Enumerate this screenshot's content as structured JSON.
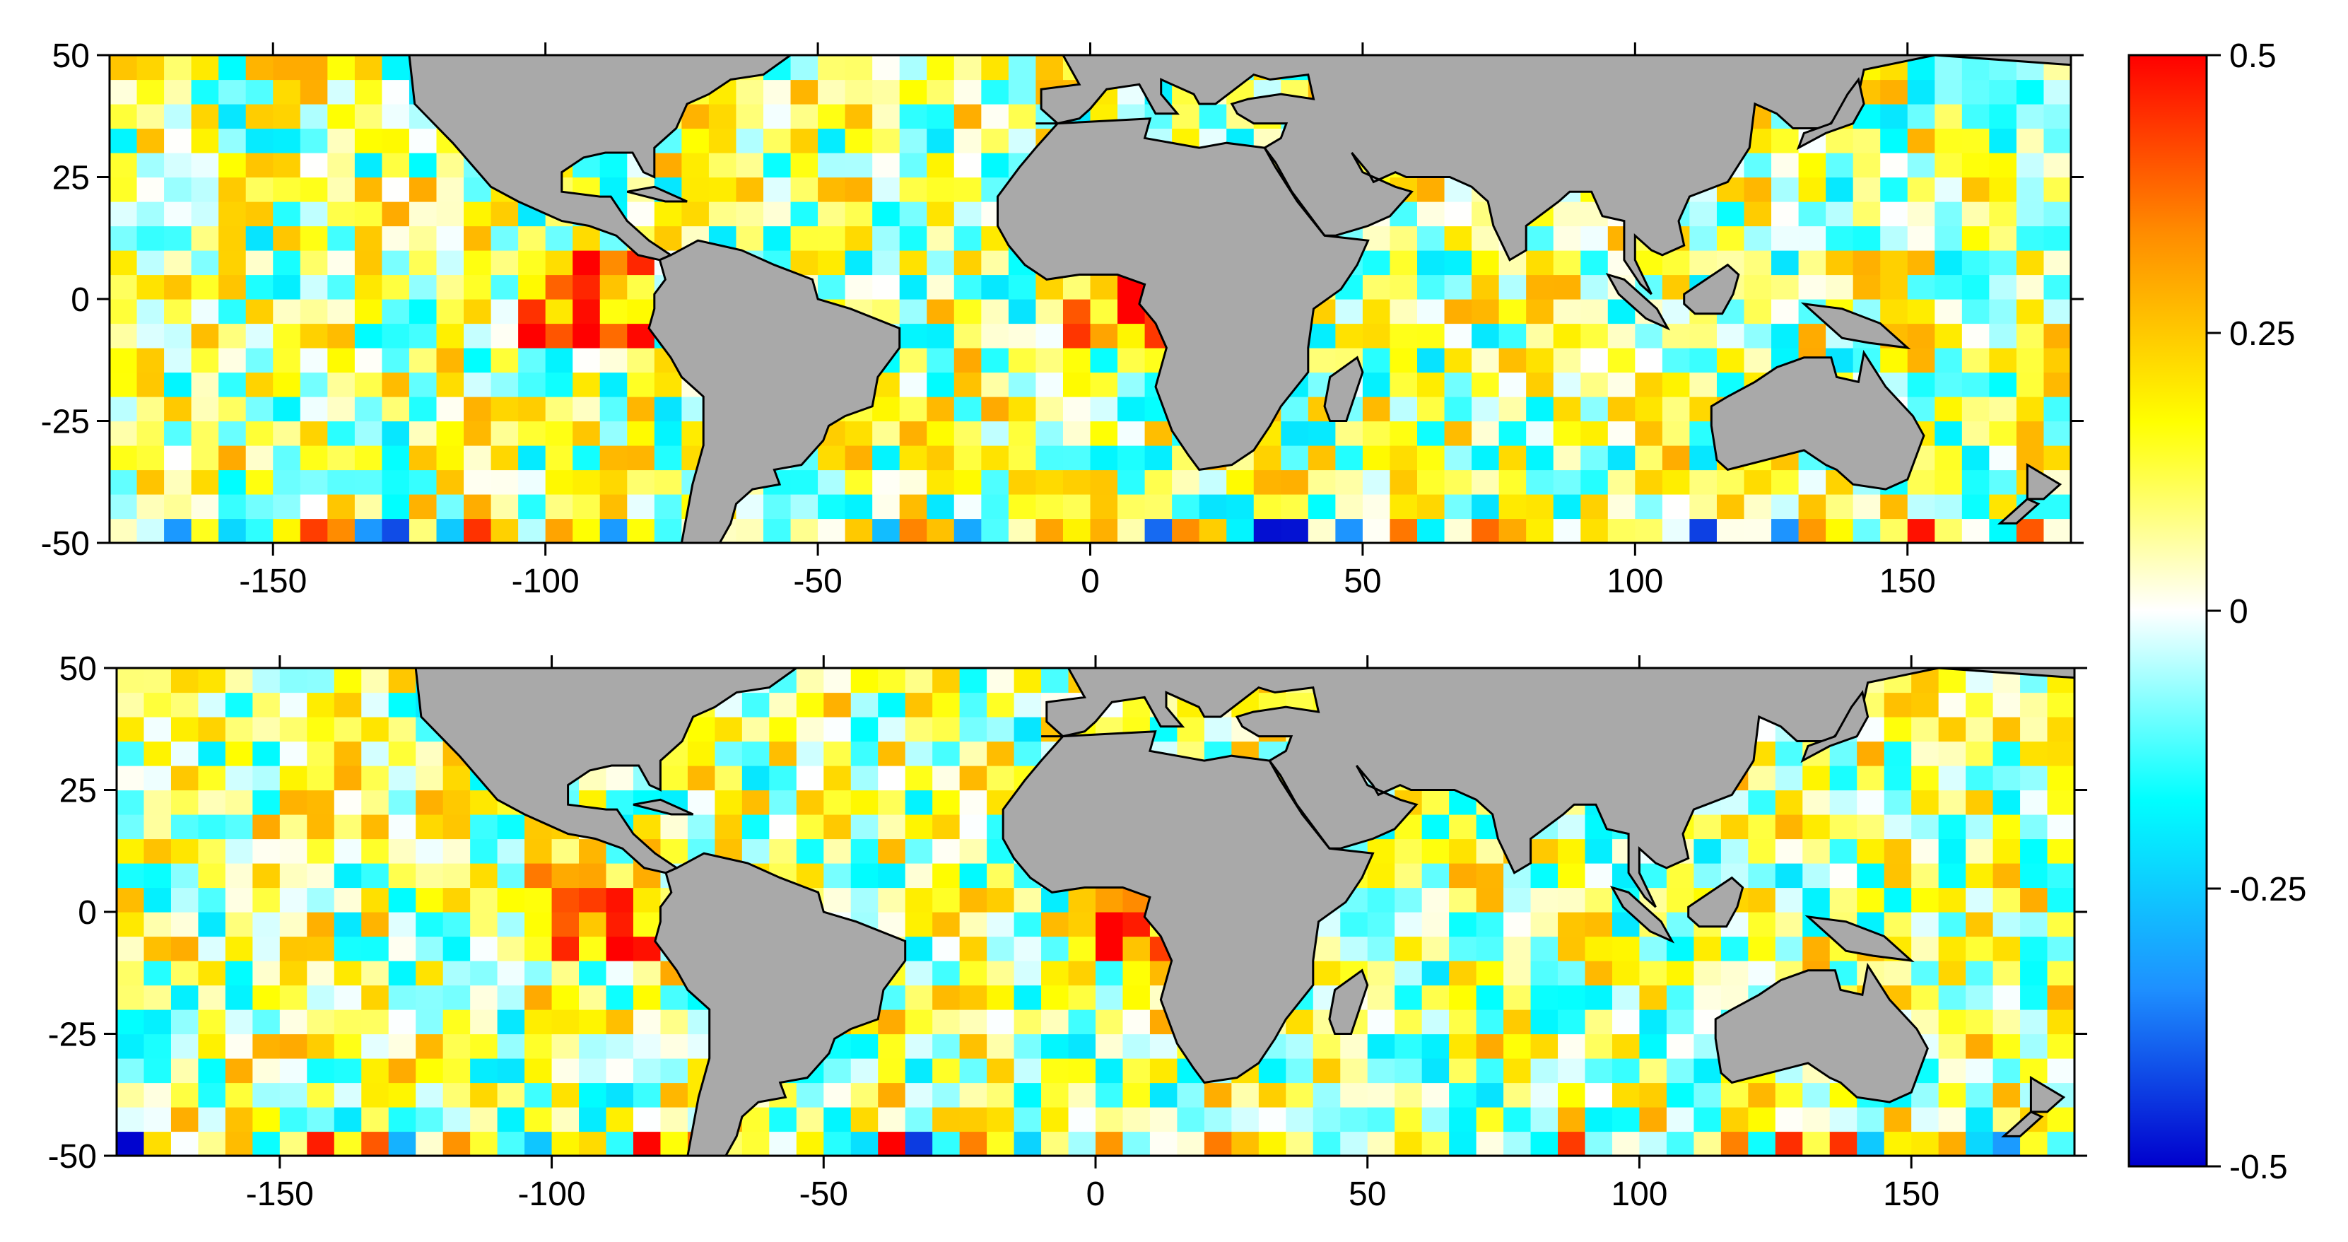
{
  "maps": [
    {
      "id": "top",
      "x_ticks": [
        -150,
        -100,
        -50,
        0,
        50,
        100,
        150
      ],
      "y_ticks": [
        50,
        25,
        0,
        -25,
        -50
      ],
      "xlim": [
        -180,
        180
      ],
      "ylim": [
        -50,
        50
      ],
      "land_color": "#a9a9a9"
    },
    {
      "id": "bottom",
      "x_ticks": [
        -150,
        -100,
        -50,
        0,
        50,
        100,
        150
      ],
      "y_ticks": [
        50,
        25,
        0,
        -25,
        -50
      ],
      "xlim": [
        -180,
        180
      ],
      "ylim": [
        -50,
        50
      ],
      "land_color": "#a9a9a9"
    }
  ],
  "colorbar": {
    "range": [
      -0.5,
      0.5
    ],
    "tick_values": [
      0.5,
      0.25,
      0,
      -0.25,
      -0.5
    ],
    "tick_labels": [
      "0.5",
      "0.25",
      "0",
      "-0.25",
      "-0.5"
    ],
    "colors": [
      "#0000cd",
      "#1e90ff",
      "#00ffff",
      "#ffffff",
      "#ffff00",
      "#ff8c00",
      "#ff0000"
    ]
  },
  "icons": {
    "land": "continent-shape-icon"
  }
}
